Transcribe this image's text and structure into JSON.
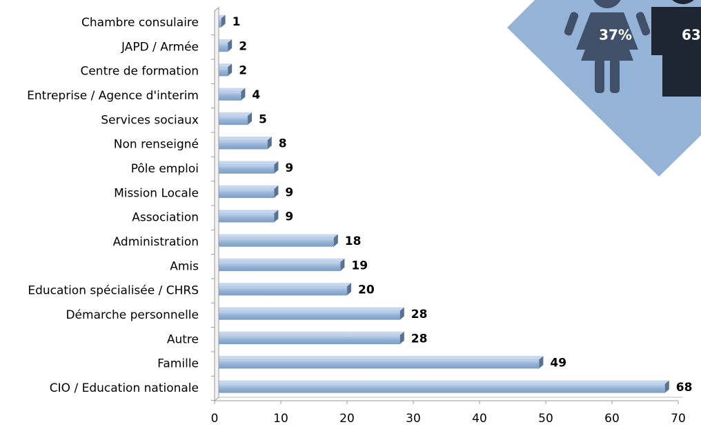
{
  "chart_data": {
    "type": "bar",
    "orientation": "horizontal",
    "categories": [
      "Chambre consulaire",
      "JAPD / Armée",
      "Centre de formation",
      "Entreprise / Agence d'interim",
      "Services sociaux",
      "Non renseigné",
      "Pôle emploi",
      "Mission Locale",
      "Association",
      "Administration",
      "Amis",
      "Education spécialisée / CHRS",
      "Démarche personnelle",
      "Autre",
      "Famille",
      "CIO / Education nationale"
    ],
    "values": [
      1,
      2,
      2,
      4,
      5,
      8,
      9,
      9,
      9,
      18,
      19,
      20,
      28,
      28,
      49,
      68
    ],
    "color": "#95b3d7",
    "xlim": [
      0,
      70
    ],
    "xticks": [
      0,
      10,
      20,
      30,
      40,
      50,
      60,
      70
    ],
    "grid": false,
    "annotations": {
      "female": "37%",
      "male": "63"
    }
  }
}
